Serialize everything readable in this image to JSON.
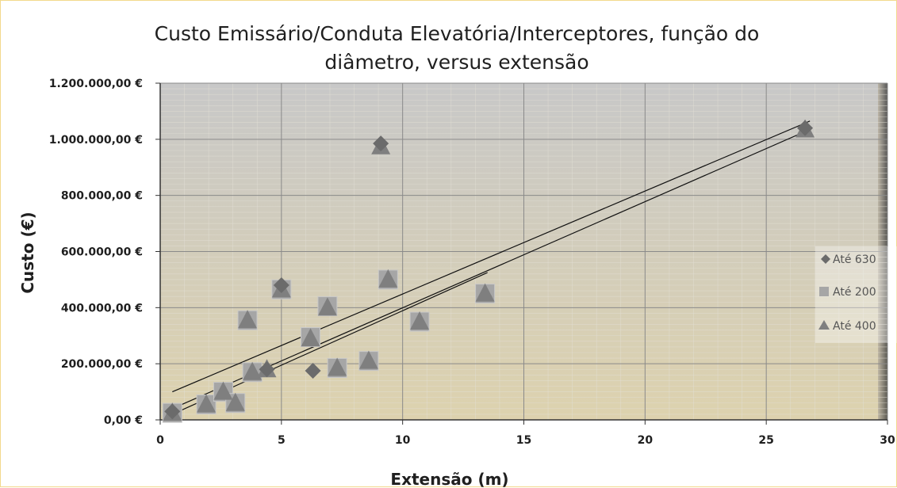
{
  "chart_data": {
    "type": "scatter",
    "title_line1": "Custo Emissário/Conduta  Elevatória/Interceptores, função do",
    "title_line2": "diâmetro, versus extensão",
    "xlabel": "Extensão (m)",
    "ylabel": "Custo (€)",
    "xlim": [
      0,
      30
    ],
    "ylim": [
      0,
      1200000
    ],
    "x_ticks": [
      0,
      5,
      10,
      15,
      20,
      25,
      30
    ],
    "y_ticks": [
      0,
      200000,
      400000,
      600000,
      800000,
      1000000,
      1200000
    ],
    "x_tick_labels": [
      "0",
      "5",
      "10",
      "15",
      "20",
      "25",
      "30"
    ],
    "y_tick_labels": [
      "0,00 €",
      "200.000,00 €",
      "400.000,00 €",
      "600.000,00 €",
      "800.000,00 €",
      "1.000.000,00 €",
      "1.200.000,00 €"
    ],
    "grid": true,
    "legend_position": "right",
    "series": [
      {
        "name": "Até 630",
        "marker": "diamond",
        "color": "#6b6b6b",
        "points": [
          [
            0.5,
            30000
          ],
          [
            4.4,
            180000
          ],
          [
            5.0,
            480000
          ],
          [
            6.3,
            175000
          ],
          [
            9.1,
            985000
          ],
          [
            26.6,
            1040000
          ]
        ]
      },
      {
        "name": "Até 200",
        "marker": "square",
        "color": "#a6a6a6",
        "points": [
          [
            0.5,
            25000
          ],
          [
            1.9,
            55000
          ],
          [
            2.6,
            100000
          ],
          [
            3.1,
            60000
          ],
          [
            3.6,
            355000
          ],
          [
            3.8,
            170000
          ],
          [
            5.0,
            465000
          ],
          [
            6.2,
            295000
          ],
          [
            6.9,
            405000
          ],
          [
            7.3,
            185000
          ],
          [
            8.6,
            210000
          ],
          [
            9.4,
            500000
          ],
          [
            10.7,
            350000
          ],
          [
            13.4,
            450000
          ]
        ]
      },
      {
        "name": "Até 400",
        "marker": "triangle",
        "color": "#7f7f7f",
        "points": [
          [
            0.5,
            25000
          ],
          [
            1.9,
            55000
          ],
          [
            2.6,
            100000
          ],
          [
            3.1,
            60000
          ],
          [
            3.6,
            355000
          ],
          [
            3.8,
            170000
          ],
          [
            4.4,
            180000
          ],
          [
            5.0,
            465000
          ],
          [
            6.2,
            290000
          ],
          [
            6.9,
            400000
          ],
          [
            7.3,
            185000
          ],
          [
            8.6,
            210000
          ],
          [
            9.1,
            975000
          ],
          [
            9.4,
            500000
          ],
          [
            10.7,
            350000
          ],
          [
            13.4,
            450000
          ],
          [
            26.6,
            1035000
          ]
        ]
      }
    ],
    "trendlines": [
      {
        "x": [
          0.5,
          26.8
        ],
        "y": [
          100000,
          1065000
        ]
      },
      {
        "x": [
          0.5,
          26.8
        ],
        "y": [
          40000,
          1035000
        ]
      },
      {
        "x": [
          0.5,
          13.5
        ],
        "y": [
          20000,
          525000
        ]
      }
    ],
    "colors": {
      "plot_bg_top": "#c8c8c8",
      "plot_bg_bottom": "#ddd2ae",
      "gridline": "#8a8a8a",
      "minor_gridline": "#e3e0d6",
      "trendline": "#111111"
    }
  }
}
